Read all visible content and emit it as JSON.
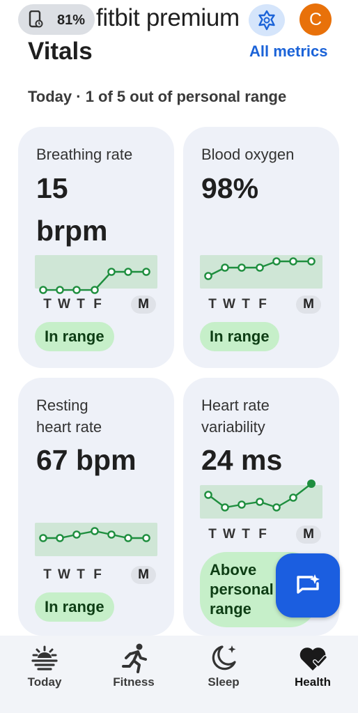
{
  "status_bar": {
    "battery": "81%"
  },
  "header": {
    "brand": "fitbit premium",
    "avatar_initial": "C"
  },
  "section": {
    "title": "Vitals",
    "link": "All metrics",
    "summary": "Today · 1 of 5 out of personal range"
  },
  "cards": [
    {
      "name": "Breathing rate",
      "value_line1": "15",
      "value_line2": "brpm",
      "days": [
        "T",
        "W",
        "T",
        "F"
      ],
      "today": "M",
      "status": "In range",
      "trend": [
        0,
        0,
        0,
        0,
        1,
        1,
        1
      ]
    },
    {
      "name": "Blood oxygen",
      "value_line1": "98%",
      "days": [
        "T",
        "W",
        "T",
        "F"
      ],
      "today": "M",
      "status": "In range",
      "trend": [
        0,
        0.5,
        0.5,
        0.5,
        0.8,
        0.8,
        0.8
      ]
    },
    {
      "name_line1": "Resting",
      "name_line2": "heart rate",
      "value_line1": "67 bpm",
      "days": [
        "T",
        "W",
        "T",
        "F"
      ],
      "today": "M",
      "status": "In range",
      "trend": [
        0.3,
        0.3,
        0.5,
        0.7,
        0.5,
        0.3,
        0.3
      ]
    },
    {
      "name_line1": "Heart rate",
      "name_line2": "variability",
      "value_line1": "24 ms",
      "days": [
        "T",
        "W",
        "T",
        "F"
      ],
      "today": "M",
      "status_lines": [
        "Above",
        "personal",
        "range"
      ],
      "trend": [
        0.6,
        0.2,
        0.25,
        0.3,
        0.2,
        0.5,
        1
      ]
    }
  ],
  "nav": [
    {
      "label": "Today",
      "icon": "today-sun-icon"
    },
    {
      "label": "Fitness",
      "icon": "runner-icon"
    },
    {
      "label": "Sleep",
      "icon": "moon-stars-icon"
    },
    {
      "label": "Health",
      "icon": "heart-check-icon",
      "active": true
    }
  ],
  "colors": {
    "accent": "#1b5ee0",
    "in_range_chip": "#c6efc9",
    "trend_green": "#1e8e3e",
    "card_bg": "#eef1f8"
  }
}
